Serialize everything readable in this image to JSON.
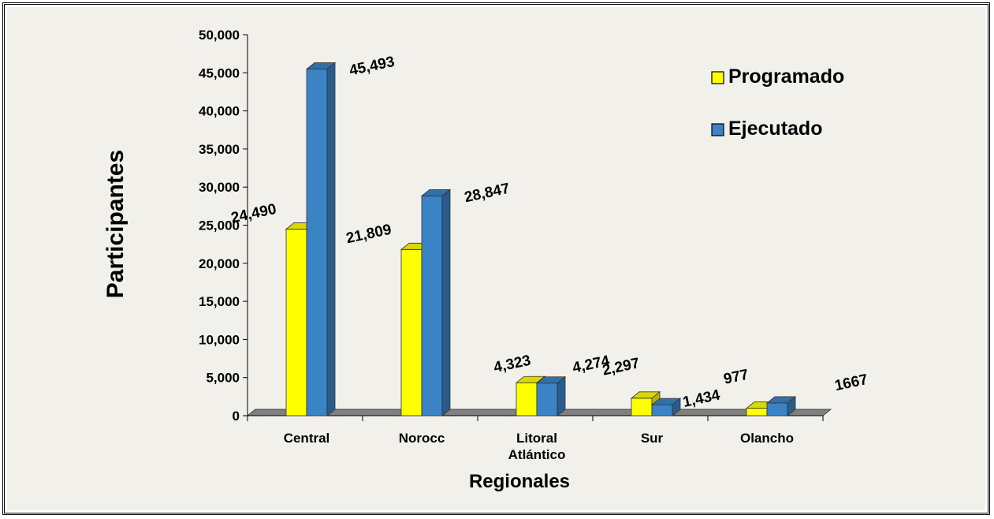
{
  "chart_data": {
    "type": "bar",
    "xlabel": "Regionales",
    "ylabel": "Participantes",
    "categories": [
      "Central",
      "Norocc",
      "Litoral Atlántico",
      "Sur",
      "Olancho"
    ],
    "category_lines": [
      [
        "Central"
      ],
      [
        "Norocc"
      ],
      [
        "Litoral",
        "Atlántico"
      ],
      [
        "Sur"
      ],
      [
        "Olancho"
      ]
    ],
    "series": [
      {
        "name": "Programado",
        "color": "#FFFF00",
        "values": [
          24490,
          21809,
          4323,
          2297,
          977
        ],
        "labels": [
          "24,490",
          "21,809",
          "4,323",
          "2,297",
          "977"
        ]
      },
      {
        "name": "Ejecutado",
        "color": "#3A84C6",
        "values": [
          45493,
          28847,
          4274,
          1434,
          1667
        ],
        "labels": [
          "45,493",
          "28,847",
          "4,274",
          "1,434",
          "1667"
        ]
      }
    ],
    "ylim": [
      0,
      50000
    ],
    "yticks": [
      "0",
      "5,000",
      "10,000",
      "15,000",
      "20,000",
      "25,000",
      "30,000",
      "35,000",
      "40,000",
      "45,000",
      "50,000"
    ],
    "grid": false,
    "legend_position": "top-right",
    "style": "3d-clustered-column",
    "background_color": "#F2F0EB",
    "floor_color": "#808080"
  }
}
